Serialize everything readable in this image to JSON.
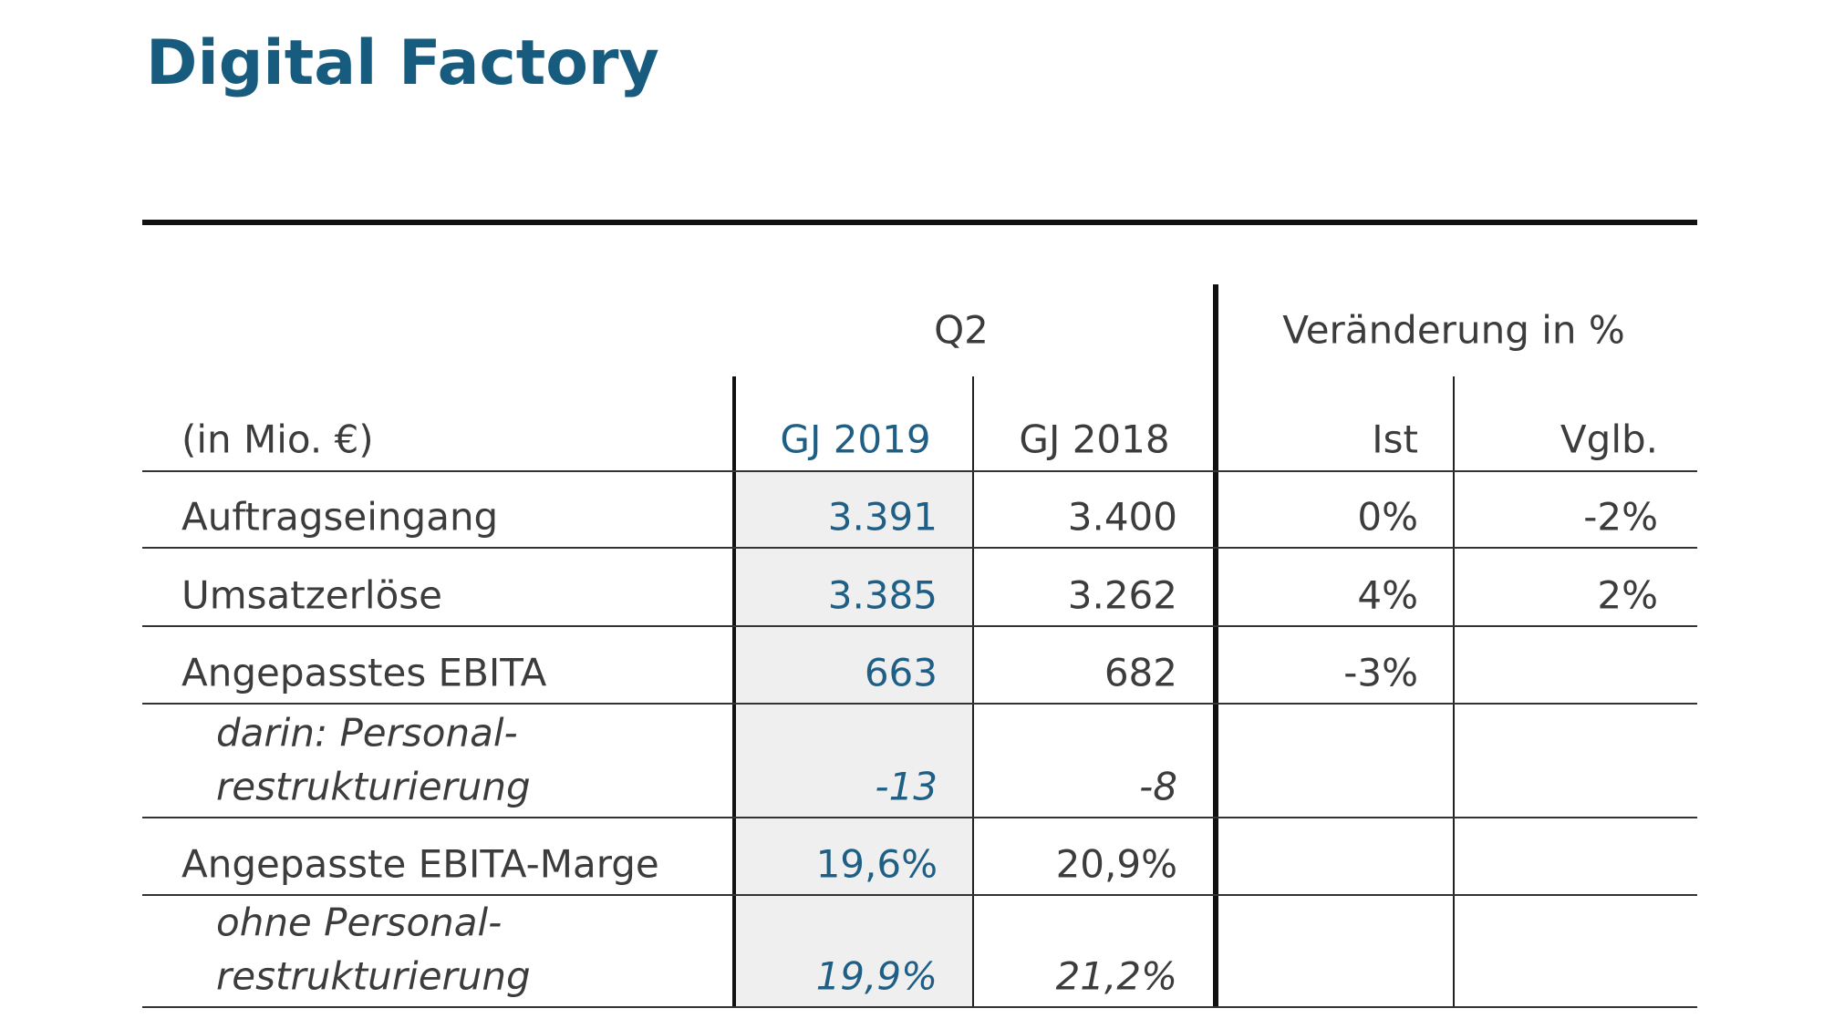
{
  "header": {
    "title": "Digital Factory"
  },
  "table": {
    "caption": "(in Mio. €)",
    "groups": [
      "Q2",
      "Veränderung in %"
    ],
    "columns": [
      "GJ 2019",
      "GJ 2018",
      "Ist",
      "Vglb."
    ],
    "rows": [
      {
        "label": [
          "Auftragseingang"
        ],
        "italic": false,
        "cells": [
          "3.391",
          "3.400",
          "0%",
          "-2%"
        ]
      },
      {
        "label": [
          "Umsatzerlöse"
        ],
        "italic": false,
        "cells": [
          "3.385",
          "3.262",
          "4%",
          "2%"
        ]
      },
      {
        "label": [
          "Angepasstes EBITA"
        ],
        "italic": false,
        "cells": [
          "663",
          "682",
          "-3%",
          null
        ]
      },
      {
        "label": [
          "darin: Personal-",
          "restrukturierung"
        ],
        "italic": true,
        "cells": [
          "-13",
          "-8",
          null,
          null
        ]
      },
      {
        "label": [
          "Angepasste EBITA-Marge"
        ],
        "italic": false,
        "cells": [
          "19,6%",
          "20,9%",
          null,
          null
        ]
      },
      {
        "label": [
          "ohne Personal-",
          "restrukturierung"
        ],
        "italic": true,
        "cells": [
          "19,9%",
          "21,2%",
          null,
          null
        ]
      }
    ]
  }
}
